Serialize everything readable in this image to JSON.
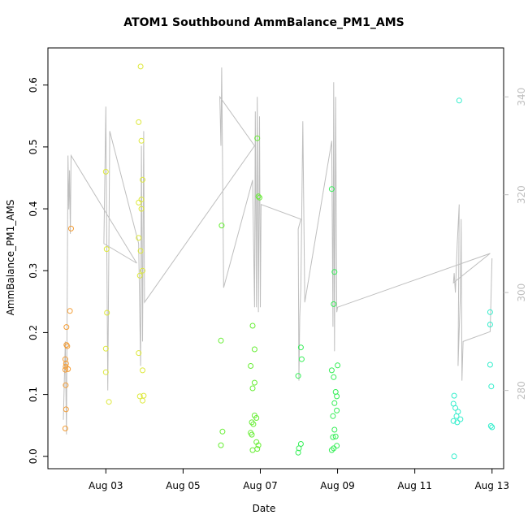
{
  "chart_data": {
    "type": "scatter",
    "title": "ATOM1 Southbound AmmBalance_PM1_AMS",
    "xlabel": "Date",
    "ylabel": "AmmBalance_PM1_AMS",
    "x_ticks": [
      "Aug 03",
      "Aug 05",
      "Aug 07",
      "Aug 09",
      "Aug 11",
      "Aug 13"
    ],
    "y_left": {
      "range": [
        -0.02,
        0.66
      ],
      "ticks": [
        "0.0",
        "0.1",
        "0.2",
        "0.3",
        "0.4",
        "0.5",
        "0.6"
      ]
    },
    "y_right": {
      "range": [
        264,
        350
      ],
      "ticks": [
        "280",
        "300",
        "320",
        "340"
      ],
      "color": "#bebebe"
    },
    "grid": false,
    "colors": {
      "orange": "#f39c34",
      "yellow": "#dde83a",
      "green": "#66ee33",
      "lime": "#33ee55",
      "cyan": "#33eecc",
      "line": "#bebebe"
    },
    "series": [
      {
        "color": "orange",
        "points": [
          [
            1.95,
            0.045
          ],
          [
            1.97,
            0.076
          ],
          [
            1.96,
            0.115
          ],
          [
            1.95,
            0.14
          ],
          [
            1.96,
            0.145
          ],
          [
            1.97,
            0.15
          ],
          [
            1.95,
            0.157
          ],
          [
            1.98,
            0.18
          ],
          [
            2.0,
            0.178
          ],
          [
            2.02,
            0.141
          ],
          [
            1.98,
            0.209
          ],
          [
            2.07,
            0.235
          ],
          [
            2.1,
            0.368
          ]
        ]
      },
      {
        "color": "yellow",
        "points": [
          [
            3.0,
            0.46
          ],
          [
            3.02,
            0.335
          ],
          [
            3.03,
            0.232
          ],
          [
            3.0,
            0.174
          ],
          [
            3.0,
            0.136
          ],
          [
            3.08,
            0.088
          ],
          [
            3.85,
            0.54
          ],
          [
            3.9,
            0.63
          ],
          [
            3.92,
            0.51
          ],
          [
            3.85,
            0.41
          ],
          [
            3.92,
            0.415
          ],
          [
            3.95,
            0.447
          ],
          [
            3.85,
            0.353
          ],
          [
            3.9,
            0.332
          ],
          [
            3.95,
            0.3
          ],
          [
            3.88,
            0.292
          ],
          [
            3.85,
            0.167
          ],
          [
            3.95,
            0.139
          ],
          [
            3.88,
            0.097
          ],
          [
            3.95,
            0.09
          ],
          [
            3.98,
            0.098
          ],
          [
            3.92,
            0.4
          ]
        ]
      },
      {
        "color": "green",
        "points": [
          [
            6.0,
            0.373
          ],
          [
            5.98,
            0.187
          ],
          [
            6.02,
            0.04
          ],
          [
            5.98,
            0.018
          ],
          [
            6.8,
            0.211
          ],
          [
            6.85,
            0.173
          ],
          [
            6.75,
            0.146
          ],
          [
            6.85,
            0.119
          ],
          [
            6.8,
            0.11
          ],
          [
            6.85,
            0.066
          ],
          [
            6.9,
            0.062
          ],
          [
            6.78,
            0.055
          ],
          [
            6.82,
            0.052
          ],
          [
            6.75,
            0.038
          ],
          [
            6.78,
            0.035
          ],
          [
            6.9,
            0.023
          ],
          [
            6.95,
            0.018
          ],
          [
            6.92,
            0.012
          ],
          [
            6.8,
            0.01
          ],
          [
            6.92,
            0.514
          ],
          [
            6.95,
            0.42
          ],
          [
            6.98,
            0.418
          ]
        ]
      },
      {
        "color": "lime",
        "points": [
          [
            8.05,
            0.176
          ],
          [
            8.07,
            0.157
          ],
          [
            7.98,
            0.13
          ],
          [
            8.05,
            0.02
          ],
          [
            8.0,
            0.013
          ],
          [
            7.98,
            0.006
          ],
          [
            8.85,
            0.432
          ],
          [
            8.92,
            0.298
          ],
          [
            8.9,
            0.246
          ],
          [
            8.85,
            0.139
          ],
          [
            9.0,
            0.147
          ],
          [
            8.9,
            0.128
          ],
          [
            8.95,
            0.104
          ],
          [
            8.98,
            0.097
          ],
          [
            8.92,
            0.086
          ],
          [
            8.98,
            0.074
          ],
          [
            8.88,
            0.065
          ],
          [
            8.92,
            0.043
          ],
          [
            8.95,
            0.032
          ],
          [
            8.88,
            0.031
          ],
          [
            8.98,
            0.017
          ],
          [
            8.9,
            0.013
          ],
          [
            8.85,
            0.01
          ]
        ]
      },
      {
        "color": "cyan",
        "points": [
          [
            12.15,
            0.575
          ],
          [
            12.02,
            0.098
          ],
          [
            12.0,
            0.085
          ],
          [
            12.05,
            0.078
          ],
          [
            12.12,
            0.072
          ],
          [
            12.08,
            0.065
          ],
          [
            12.18,
            0.06
          ],
          [
            12.0,
            0.057
          ],
          [
            12.1,
            0.055
          ],
          [
            12.02,
            0.0
          ],
          [
            12.95,
            0.233
          ],
          [
            12.95,
            0.213
          ],
          [
            12.95,
            0.148
          ],
          [
            12.98,
            0.113
          ],
          [
            12.97,
            0.049
          ],
          [
            13.0,
            0.047
          ]
        ]
      }
    ],
    "line_series": {
      "axis": "right",
      "points": [
        [
          1.9,
          274
        ],
        [
          1.95,
          290
        ],
        [
          1.98,
          271
        ],
        [
          2.02,
          328
        ],
        [
          2.04,
          317
        ],
        [
          2.06,
          325
        ],
        [
          2.08,
          312
        ],
        [
          2.1,
          328
        ],
        [
          3.8,
          306
        ],
        [
          2.95,
          310
        ],
        [
          3.0,
          338
        ],
        [
          3.05,
          280
        ],
        [
          3.1,
          333
        ],
        [
          3.85,
          310
        ],
        [
          3.9,
          285
        ],
        [
          3.92,
          330
        ],
        [
          3.95,
          290
        ],
        [
          3.98,
          333
        ],
        [
          4.0,
          298
        ],
        [
          6.85,
          330
        ],
        [
          5.95,
          340
        ],
        [
          5.98,
          330
        ],
        [
          6.0,
          346
        ],
        [
          6.02,
          328
        ],
        [
          6.05,
          301
        ],
        [
          6.8,
          323
        ],
        [
          6.85,
          297
        ],
        [
          6.87,
          337
        ],
        [
          6.9,
          297
        ],
        [
          6.92,
          340
        ],
        [
          6.95,
          296
        ],
        [
          6.98,
          336
        ],
        [
          7.0,
          297
        ],
        [
          7.02,
          318
        ],
        [
          8.05,
          315
        ],
        [
          7.98,
          313
        ],
        [
          8.0,
          282
        ],
        [
          8.02,
          295
        ],
        [
          8.05,
          301
        ],
        [
          8.1,
          335
        ],
        [
          8.15,
          298
        ],
        [
          8.85,
          331
        ],
        [
          8.88,
          293
        ],
        [
          8.9,
          343
        ],
        [
          8.92,
          288
        ],
        [
          8.95,
          340
        ],
        [
          8.98,
          296
        ],
        [
          9.0,
          297
        ],
        [
          12.95,
          308
        ],
        [
          12.0,
          302
        ],
        [
          12.02,
          304
        ],
        [
          12.05,
          300
        ],
        [
          12.1,
          310
        ],
        [
          12.15,
          318
        ],
        [
          12.12,
          285
        ],
        [
          12.18,
          300
        ],
        [
          12.2,
          315
        ],
        [
          12.22,
          282
        ],
        [
          12.25,
          290
        ],
        [
          12.95,
          292
        ],
        [
          13.0,
          307
        ]
      ]
    }
  }
}
